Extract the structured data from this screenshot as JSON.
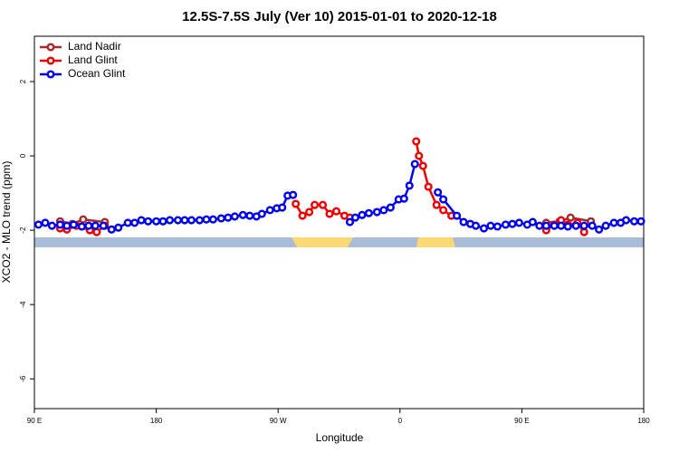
{
  "chart_data": {
    "type": "line",
    "title": "12.5S-7.5S July (Ver 10)   2015-01-01 to 2020-12-18",
    "x_label": "Longitude",
    "y_label": "XCO2 - MLO trend (ppm)",
    "xlim": [
      -270,
      180
    ],
    "ylim": [
      -6.8,
      3.22
    ],
    "xticks": [
      {
        "value": -270,
        "label": "90 E"
      },
      {
        "value": -180,
        "label": "180"
      },
      {
        "value": -90,
        "label": "90 W"
      },
      0,
      {
        "value": 90,
        "label": "90 E"
      },
      180
    ],
    "yticks": [
      2,
      0,
      -2,
      -4,
      -6
    ],
    "legend": "top-left",
    "series": [
      {
        "name": "Land Nadir",
        "color": "#a52a2a",
        "x": [
          -251,
          -242,
          -234,
          -218,
          null,
          108,
          118,
          126,
          141
        ],
        "values": [
          -1.76,
          -1.83,
          -1.71,
          -1.78,
          null,
          -1.8,
          -1.76,
          -1.66,
          -1.76
        ]
      },
      {
        "name": "Land Glint",
        "color": "#ee0000",
        "x": [
          -251,
          -246,
          -239,
          -229,
          -224,
          -218,
          null,
          -77,
          -72,
          -67,
          -63,
          -57,
          -52,
          -47,
          -41,
          -37,
          null,
          12,
          14,
          17,
          21,
          27,
          32,
          38,
          null,
          108,
          114,
          119,
          124,
          131,
          136
        ],
        "values": [
          -1.95,
          -1.98,
          -1.88,
          -2.0,
          -2.05,
          -1.88,
          null,
          -1.29,
          -1.61,
          -1.51,
          -1.32,
          -1.32,
          -1.56,
          -1.49,
          -1.61,
          -1.66,
          null,
          0.39,
          0.0,
          -0.27,
          -0.83,
          -1.32,
          -1.46,
          -1.61,
          null,
          -2.0,
          -1.85,
          -1.73,
          -1.85,
          -1.8,
          -2.05
        ]
      },
      {
        "name": "Ocean Glint",
        "color": "#0000ee",
        "x": [
          -267,
          -262,
          -257,
          -251,
          -246,
          -241,
          -235,
          -230,
          -225,
          -219,
          -213,
          -208,
          -201,
          -196,
          -191,
          -186,
          -180,
          -175,
          -170,
          -164,
          -159,
          -154,
          -148,
          -143,
          -138,
          -132,
          -127,
          -122,
          -116,
          -111,
          -106,
          -102,
          -96,
          -91,
          -87,
          -83,
          -79,
          null,
          -37,
          -33,
          -28,
          -23,
          -17,
          -12,
          -7,
          -1,
          3,
          7,
          11,
          null,
          28,
          32,
          42,
          47,
          52,
          56,
          62,
          67,
          72,
          78,
          83,
          88,
          94,
          98,
          103,
          108,
          114,
          119,
          124,
          130,
          136,
          142,
          147,
          152,
          158,
          163,
          167,
          173,
          178
        ],
        "values": [
          -1.85,
          -1.8,
          -1.88,
          -1.85,
          -1.88,
          -1.85,
          -1.9,
          -1.88,
          -1.88,
          -1.88,
          -1.98,
          -1.93,
          -1.8,
          -1.8,
          -1.73,
          -1.76,
          -1.76,
          -1.76,
          -1.73,
          -1.73,
          -1.73,
          -1.73,
          -1.73,
          -1.71,
          -1.71,
          -1.68,
          -1.66,
          -1.63,
          -1.59,
          -1.61,
          -1.63,
          -1.56,
          -1.46,
          -1.41,
          -1.39,
          -1.07,
          -1.05,
          null,
          -1.78,
          -1.66,
          -1.59,
          -1.54,
          -1.51,
          -1.46,
          -1.39,
          -1.17,
          -1.15,
          -0.8,
          -0.22,
          null,
          -0.98,
          -1.17,
          -1.61,
          -1.78,
          -1.83,
          -1.88,
          -1.95,
          -1.88,
          -1.9,
          -1.85,
          -1.83,
          -1.8,
          -1.85,
          -1.78,
          -1.88,
          -1.88,
          -1.88,
          -1.88,
          -1.9,
          -1.88,
          -1.88,
          -1.88,
          -1.98,
          -1.88,
          -1.8,
          -1.8,
          -1.73,
          -1.76,
          -1.76
        ]
      }
    ]
  }
}
